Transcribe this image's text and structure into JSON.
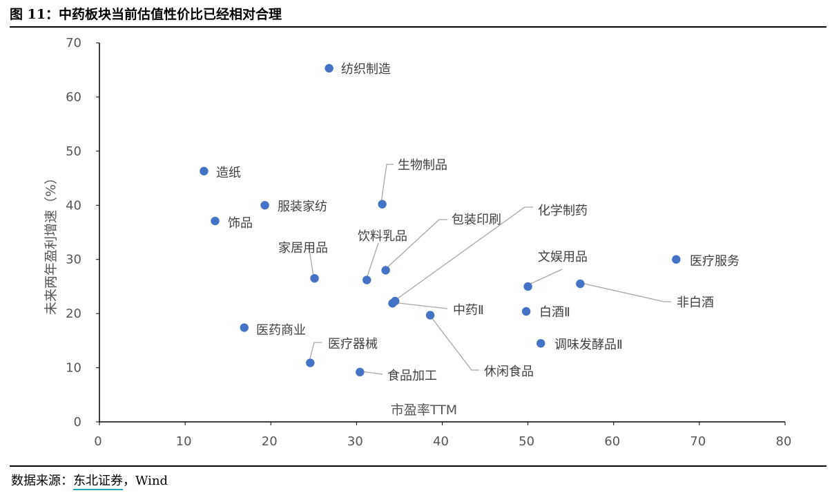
{
  "figure": {
    "title": "图 11：中药板块当前估值性价比已经相对合理",
    "source_prefix": "数据来源：",
    "source_brand": "东北证券",
    "source_suffix": "，Wind"
  },
  "chart_data": {
    "type": "scatter",
    "title": "",
    "xlabel": "市盈率TTM",
    "ylabel": "未来两年盈利增速（%）",
    "xlim": [
      0,
      80
    ],
    "ylim": [
      0,
      70
    ],
    "xticks": [
      0,
      10,
      20,
      30,
      40,
      50,
      60,
      70,
      80
    ],
    "yticks": [
      0,
      10,
      20,
      30,
      40,
      50,
      60,
      70
    ],
    "grid": false,
    "marker_color": "#4472c4",
    "highlight_color": "#ff0000",
    "points": [
      {
        "label": "纺织制造",
        "x": 26.8,
        "y": 65.3
      },
      {
        "label": "造纸",
        "x": 12.2,
        "y": 46.3
      },
      {
        "label": "服装家纺",
        "x": 19.3,
        "y": 40.0
      },
      {
        "label": "饰品",
        "x": 13.5,
        "y": 37.1
      },
      {
        "label": "生物制品",
        "x": 33.0,
        "y": 40.2
      },
      {
        "label": "家居用品",
        "x": 25.1,
        "y": 26.5
      },
      {
        "label": "饮料乳品",
        "x": 31.2,
        "y": 26.2
      },
      {
        "label": "包装印刷",
        "x": 33.4,
        "y": 28.0
      },
      {
        "label": "化学制药",
        "x": 34.5,
        "y": 22.3
      },
      {
        "label": "中药Ⅱ",
        "x": 34.2,
        "y": 21.9,
        "highlight": true
      },
      {
        "label": "休闲食品",
        "x": 38.6,
        "y": 19.7
      },
      {
        "label": "医药商业",
        "x": 16.9,
        "y": 17.4
      },
      {
        "label": "医疗器械",
        "x": 24.6,
        "y": 10.9
      },
      {
        "label": "食品加工",
        "x": 30.4,
        "y": 9.2
      },
      {
        "label": "文娱用品",
        "x": 50.0,
        "y": 25.0
      },
      {
        "label": "白酒Ⅱ",
        "x": 49.8,
        "y": 20.4
      },
      {
        "label": "调味发酵品Ⅱ",
        "x": 51.5,
        "y": 14.5
      },
      {
        "label": "非白酒",
        "x": 56.1,
        "y": 25.5
      },
      {
        "label": "医疗服务",
        "x": 67.3,
        "y": 30.0
      }
    ]
  }
}
